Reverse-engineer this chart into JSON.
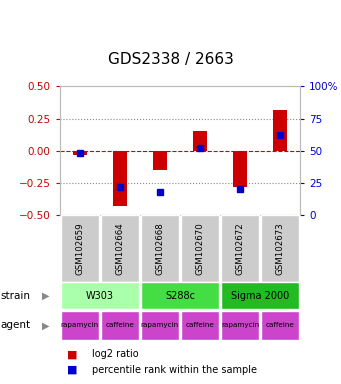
{
  "title": "GDS2338 / 2663",
  "samples": [
    "GSM102659",
    "GSM102664",
    "GSM102668",
    "GSM102670",
    "GSM102672",
    "GSM102673"
  ],
  "log2_ratio": [
    -0.03,
    -0.43,
    -0.15,
    0.15,
    -0.28,
    0.32
  ],
  "percentile": [
    48,
    22,
    18,
    52,
    20,
    62
  ],
  "ylim": [
    -0.5,
    0.5
  ],
  "yticks_left": [
    -0.5,
    -0.25,
    0.0,
    0.25,
    0.5
  ],
  "yticks_right_vals": [
    0,
    25,
    50,
    75,
    100
  ],
  "yticks_right_labels": [
    "0",
    "25",
    "50",
    "75",
    "100%"
  ],
  "bar_color": "#cc0000",
  "dot_color": "#0000cc",
  "strain_labels": [
    [
      "W303",
      0,
      2
    ],
    [
      "S288c",
      2,
      4
    ],
    [
      "Sigma 2000",
      4,
      6
    ]
  ],
  "strain_colors": [
    "#aaffaa",
    "#44dd44",
    "#22bb22"
  ],
  "agent_labels": [
    "rapamycin",
    "caffeine",
    "rapamycin",
    "caffeine",
    "rapamycin",
    "caffeine"
  ],
  "agent_color": "#cc44cc",
  "sample_bg_color": "#cccccc",
  "dotted_line_color": "#888888",
  "zero_line_color": "#cc0000",
  "legend_red": "log2 ratio",
  "legend_blue": "percentile rank within the sample",
  "ylabel_left_color": "#cc0000",
  "ylabel_right_color": "#0000cc",
  "title_fontsize": 11,
  "tick_fontsize": 7.5,
  "bar_width": 0.35,
  "dot_size": 5
}
